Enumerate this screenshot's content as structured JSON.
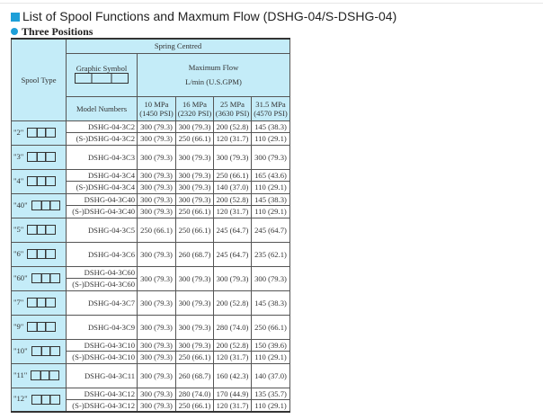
{
  "title": "List of Spool Functions and Maxmum Flow (DSHG-04/S-DSHG-04)",
  "subtitle": "Three Positions",
  "header": {
    "spring": "Spring Centred",
    "graphic": "Graphic Symbol",
    "spool_type": "Spool Type",
    "max_flow": "Maximum Flow",
    "unit": "L/min (U.S.GPM)",
    "model_numbers": "Model Numbers",
    "pressures": [
      "10 MPa",
      "16 MPa",
      "25 MPa",
      "31.5 MPa"
    ],
    "psi": [
      "(1450 PSI)",
      "(2320 PSI)",
      "(3630 PSI)",
      "(4570 PSI)"
    ]
  },
  "colors": {
    "accent": "#1e9fd8",
    "header_bg": "#c4ecf8"
  },
  "groups": [
    {
      "type": "\"2\"",
      "rows": [
        {
          "model": "DSHG-04-3C2",
          "flows": [
            "300 (79.3)",
            "300 (79.3)",
            "200 (52.8)",
            "145 (38.3)"
          ]
        },
        {
          "model": "(S-)DSHG-04-3C2",
          "flows": [
            "300 (79.3)",
            "250 (66.1)",
            "120 (31.7)",
            "110 (29.1)"
          ]
        }
      ]
    },
    {
      "type": "\"3\"",
      "rows": [
        {
          "model": "DSHG-04-3C3",
          "flows": [
            "300 (79.3)",
            "300 (79.3)",
            "300 (79.3)",
            "300 (79.3)"
          ]
        }
      ]
    },
    {
      "type": "\"4\"",
      "rows": [
        {
          "model": "DSHG-04-3C4",
          "flows": [
            "300 (79.3)",
            "300 (79.3)",
            "250 (66.1)",
            "165 (43.6)"
          ]
        },
        {
          "model": "(S-)DSHG-04-3C4",
          "flows": [
            "300 (79.3)",
            "300 (79.3)",
            "140 (37.0)",
            "110 (29.1)"
          ]
        }
      ]
    },
    {
      "type": "\"40\"",
      "rows": [
        {
          "model": "DSHG-04-3C40",
          "flows": [
            "300 (79.3)",
            "300 (79.3)",
            "200 (52.8)",
            "145 (38.3)"
          ]
        },
        {
          "model": "(S-)DSHG-04-3C40",
          "flows": [
            "300 (79.3)",
            "250 (66.1)",
            "120 (31.7)",
            "110 (29.1)"
          ]
        }
      ]
    },
    {
      "type": "\"5\"",
      "rows": [
        {
          "model": "DSHG-04-3C5",
          "flows": [
            "250 (66.1)",
            "250 (66.1)",
            "245 (64.7)",
            "245 (64.7)"
          ]
        }
      ]
    },
    {
      "type": "\"6\"",
      "rows": [
        {
          "model": "DSHG-04-3C6",
          "flows": [
            "300 (79.3)",
            "260 (68.7)",
            "245 (64.7)",
            "235 (62.1)"
          ]
        }
      ]
    },
    {
      "type": "\"60\"",
      "merged": true,
      "rows": [
        {
          "model": "DSHG-04-3C60",
          "flows": [
            "300 (79.3)",
            "300 (79.3)",
            "300 (79.3)",
            "300 (79.3)"
          ]
        },
        {
          "model": "(S-)DSHG-04-3C60"
        }
      ]
    },
    {
      "type": "\"7\"",
      "rows": [
        {
          "model": "DSHG-04-3C7",
          "flows": [
            "300 (79.3)",
            "300 (79.3)",
            "200 (52.8)",
            "145 (38.3)"
          ]
        }
      ]
    },
    {
      "type": "\"9\"",
      "rows": [
        {
          "model": "DSHG-04-3C9",
          "flows": [
            "300 (79.3)",
            "300 (79.3)",
            "280 (74.0)",
            "250 (66.1)"
          ]
        }
      ]
    },
    {
      "type": "\"10\"",
      "rows": [
        {
          "model": "DSHG-04-3C10",
          "flows": [
            "300 (79.3)",
            "300 (79.3)",
            "200 (52.8)",
            "150 (39.6)"
          ]
        },
        {
          "model": "(S-)DSHG-04-3C10",
          "flows": [
            "300 (79.3)",
            "250 (66.1)",
            "120 (31.7)",
            "110 (29.1)"
          ]
        }
      ]
    },
    {
      "type": "\"11\"",
      "rows": [
        {
          "model": "DSHG-04-3C11",
          "flows": [
            "300 (79.3)",
            "260 (68.7)",
            "160 (42.3)",
            "140 (37.0)"
          ]
        }
      ]
    },
    {
      "type": "\"12\"",
      "rows": [
        {
          "model": "DSHG-04-3C12",
          "flows": [
            "300 (79.3)",
            "280 (74.0)",
            "170 (44.9)",
            "135 (35.7)"
          ]
        },
        {
          "model": "(S-)DSHG-04-3C12",
          "flows": [
            "300 (79.3)",
            "250 (66.1)",
            "120 (31.7)",
            "110 (29.1)"
          ]
        }
      ]
    }
  ]
}
